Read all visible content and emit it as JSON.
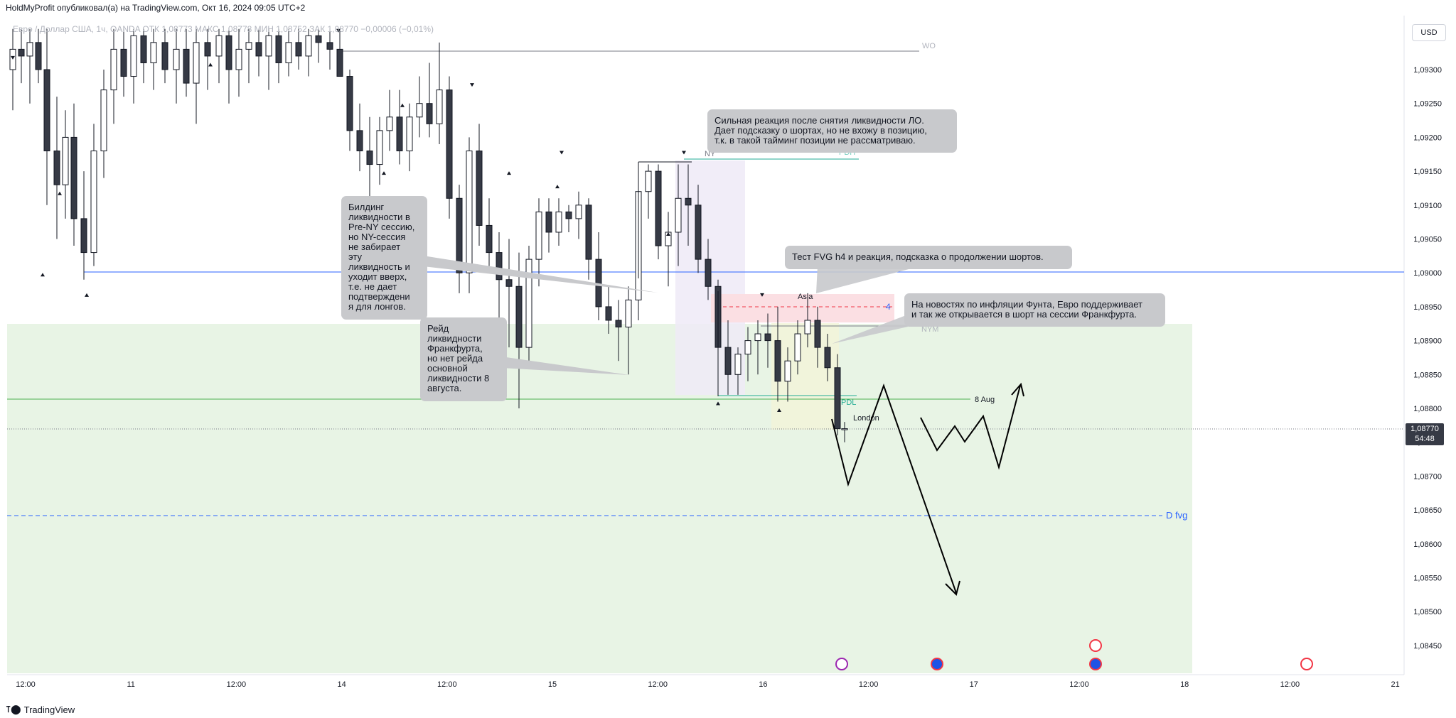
{
  "header": {
    "publisher": "HoldMyProfit опубликовал(а) на TradingView.com, Окт 16, 2024 09:05 UTC+2"
  },
  "legend": {
    "text": "Евро / Доллар США, 1ч, OANDA  ОТК 1,08773 МАКС 1,08778 МИН 1,08752 ЗАК 1,08770 −0,00006 (−0,01%)"
  },
  "currency_button": "USD",
  "last_price": {
    "value": "1,08770",
    "countdown": "54:48"
  },
  "footer": {
    "brand": "TradingView"
  },
  "annotations": {
    "callout_top": "Сильная реакция после снятия ликвидности ЛО.\nДает подсказку о шортах, но не вхожу в позицию,\nт.к. в такой тайминг позиции не рассматриваю.",
    "callout_building": "Билдинг\nликвидности в\nPre-NY сессию,\nно NY-сессия\nне забирает\nэту\nликвидность и\nуходит вверх,\nт.е. не дает\nподтверждени\nя для лонгов.",
    "callout_raid": "Рейд\nликвидности\nФранкфурта,\nно нет рейда\nосновной\nликвидности 8\nавгуста.",
    "callout_fvg": "Тест FVG h4 и реакция, подсказка о продолжении шортов.",
    "callout_news": "На новостях по инфляции Фунта, Евро поддерживает\nи так же открывается в шорт на сессии Франкфурта."
  },
  "level_labels": {
    "wo": "WO",
    "pdh": "PDH",
    "ny": "NY",
    "asia": "Asia",
    "nym": "NYM",
    "pdl": "PDL",
    "london": "London",
    "aug8": "8 Aug",
    "dfvg": "D fvg",
    "four": "4"
  },
  "chart_data": {
    "type": "candlestick",
    "symbol": "Евро / Доллар США",
    "interval": "1ч",
    "broker": "OANDA",
    "ohlc": {
      "open": 1.08773,
      "high": 1.08778,
      "low": 1.08752,
      "close": 1.0877,
      "change": -6e-05,
      "change_pct": -0.01
    },
    "y_ticks": [
      "1,09300",
      "1,09250",
      "1,09200",
      "1,09150",
      "1,09100",
      "1,09050",
      "1,09000",
      "1,08950",
      "1,08900",
      "1,08850",
      "1,08800",
      "1,08750",
      "1,08700",
      "1,08650",
      "1,08600",
      "1,08550",
      "1,08500",
      "1,08450"
    ],
    "y_range": [
      1.0842,
      1.0936
    ],
    "x_ticks": [
      "12:00",
      "11",
      "12:00",
      "14",
      "12:00",
      "15",
      "12:00",
      "16",
      "12:00",
      "17",
      "12:00",
      "18",
      "12:00",
      "21"
    ],
    "levels": [
      {
        "label": "WO",
        "price": 1.0932,
        "color": "#787b86"
      },
      {
        "label": "PDH",
        "price": 1.09168,
        "color": "#22ab94"
      },
      {
        "label": "",
        "price": 1.09,
        "color": "#2962ff"
      },
      {
        "label": "8 Aug",
        "price": 1.08812,
        "color": "#4caf50"
      },
      {
        "label": "D fvg",
        "price": 1.0864,
        "color": "#2962ff",
        "dashed": true
      },
      {
        "label": "",
        "price": 1.0877,
        "color": "#787b86",
        "dotted": true
      }
    ],
    "zones": [
      {
        "name": "fvg-green",
        "top": 1.08923,
        "bottom": 1.0842,
        "color": "#e6f3e4"
      },
      {
        "name": "h4-fvg-red",
        "top": 1.0897,
        "bottom": 1.0893,
        "color": "#fbe1e4"
      },
      {
        "name": "ny-session",
        "top": 1.0917,
        "bottom": 1.0882,
        "color": "#f1edf9"
      }
    ],
    "candles": [
      [
        1.0928,
        1.0934,
        1.0924,
        1.0933
      ],
      [
        1.0933,
        1.0936,
        1.0925,
        1.0927
      ],
      [
        1.0927,
        1.0934,
        1.0918,
        1.0931
      ],
      [
        1.0931,
        1.0936,
        1.0924,
        1.0934
      ],
      [
        1.0934,
        1.0936,
        1.0904,
        1.0921
      ],
      [
        1.0921,
        1.0928,
        1.0912,
        1.0915
      ],
      [
        1.0915,
        1.0936,
        1.0912,
        1.0934
      ],
      [
        1.0934,
        1.0936,
        1.0925,
        1.0936
      ],
      [
        1.0936,
        1.0936,
        1.0917,
        1.0922
      ],
      [
        1.0922,
        1.0926,
        1.0909,
        1.0914
      ],
      [
        1.0914,
        1.0924,
        1.0912,
        1.0923
      ],
      [
        1.0923,
        1.0926,
        1.0914,
        1.0919
      ],
      [
        1.0919,
        1.0925,
        1.0903,
        1.0908
      ],
      [
        1.0908,
        1.0912,
        1.09,
        1.091
      ],
      [
        1.091,
        1.0918,
        1.0904,
        1.0916
      ],
      [
        1.0916,
        1.0931,
        1.0914,
        1.0929
      ],
      [
        1.0929,
        1.0936,
        1.0926,
        1.0931
      ],
      [
        1.0931,
        1.0934,
        1.0924,
        1.0926
      ],
      [
        1.0926,
        1.0936,
        1.0922,
        1.0935
      ],
      [
        1.0935,
        1.0936,
        1.0925,
        1.0931
      ]
    ]
  }
}
